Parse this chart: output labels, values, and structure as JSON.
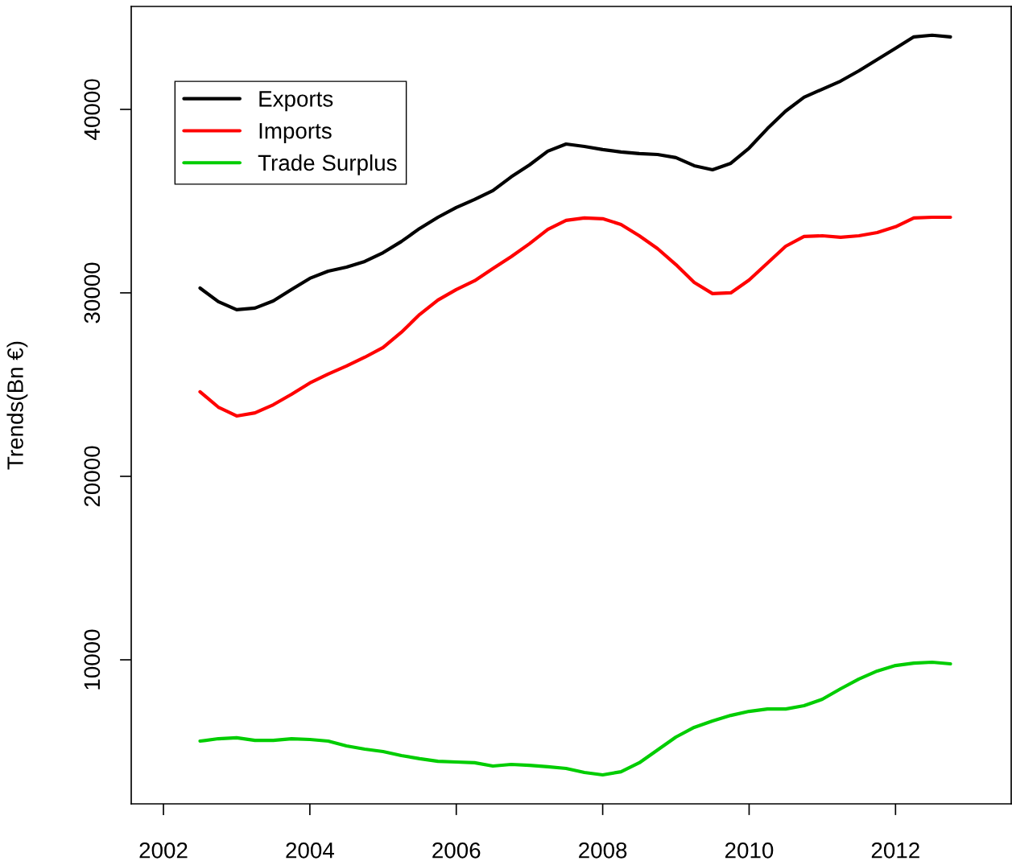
{
  "chart_data": {
    "type": "line",
    "ylabel": "Trends(Bn €)",
    "x": [
      2002.5,
      2002.75,
      2003.0,
      2003.25,
      2003.5,
      2003.75,
      2004.0,
      2004.25,
      2004.5,
      2004.75,
      2005.0,
      2005.25,
      2005.5,
      2005.75,
      2006.0,
      2006.25,
      2006.5,
      2006.75,
      2007.0,
      2007.25,
      2007.5,
      2007.75,
      2008.0,
      2008.25,
      2008.5,
      2008.75,
      2009.0,
      2009.25,
      2009.5,
      2009.75,
      2010.0,
      2010.25,
      2010.5,
      2010.75,
      2011.0,
      2011.25,
      2011.5,
      2011.75,
      2012.0,
      2012.25,
      2012.5,
      2012.75
    ],
    "series": [
      {
        "name": "Exports",
        "color": "#000000",
        "values": [
          30260,
          29520,
          29080,
          29170,
          29560,
          30180,
          30790,
          31180,
          31400,
          31710,
          32190,
          32800,
          33510,
          34120,
          34650,
          35090,
          35570,
          36320,
          36970,
          37720,
          38110,
          37980,
          37810,
          37680,
          37590,
          37540,
          37370,
          36930,
          36710,
          37060,
          37890,
          38950,
          39910,
          40660,
          41100,
          41540,
          42100,
          42720,
          43330,
          43950,
          44040,
          43950
        ]
      },
      {
        "name": "Imports",
        "color": "#ff0000",
        "values": [
          24610,
          23770,
          23290,
          23460,
          23900,
          24470,
          25090,
          25570,
          26010,
          26490,
          27020,
          27850,
          28820,
          29610,
          30180,
          30660,
          31320,
          31970,
          32680,
          33460,
          33950,
          34080,
          34040,
          33730,
          33110,
          32410,
          31540,
          30570,
          29960,
          30000,
          30700,
          31620,
          32540,
          33070,
          33110,
          33030,
          33110,
          33290,
          33600,
          34080,
          34120,
          34120
        ]
      },
      {
        "name": "Trade Surplus",
        "color": "#00cd00",
        "values": [
          5570,
          5700,
          5750,
          5610,
          5610,
          5700,
          5660,
          5570,
          5310,
          5130,
          5000,
          4780,
          4610,
          4470,
          4430,
          4390,
          4210,
          4300,
          4250,
          4170,
          4080,
          3860,
          3730,
          3900,
          4390,
          5090,
          5790,
          6320,
          6670,
          6970,
          7190,
          7320,
          7320,
          7500,
          7850,
          8420,
          8950,
          9390,
          9690,
          9820,
          9870,
          9780
        ]
      }
    ],
    "xlim": [
      2001.56,
      2013.58
    ],
    "ylim": [
      2150,
      45610
    ],
    "xticks": [
      2002,
      2004,
      2006,
      2008,
      2010,
      2012
    ],
    "yticks": [
      10000,
      20000,
      30000,
      40000
    ],
    "grid": false,
    "legend": "top left",
    "line_style": "solid",
    "marker": "none"
  }
}
